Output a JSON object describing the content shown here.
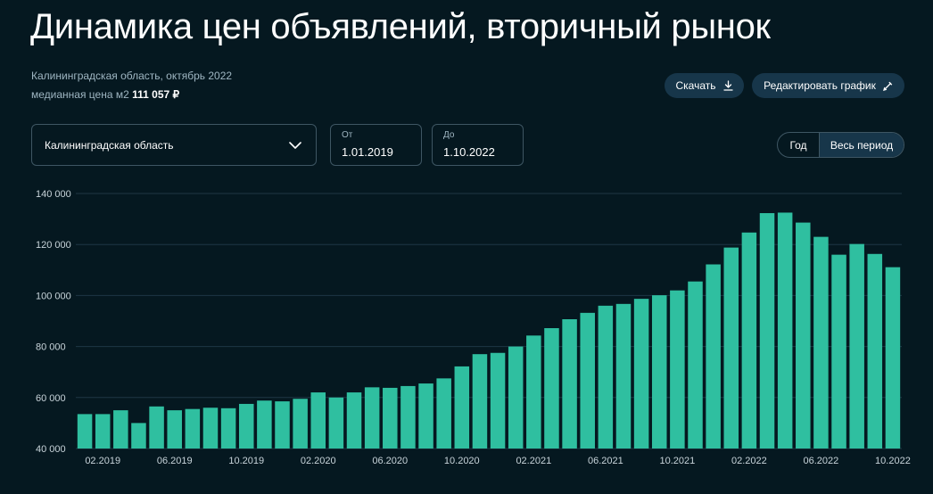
{
  "header": {
    "title": "Динамика цен объявлений, вторичный рынок",
    "region_period": "Калининградская область, октябрь 2022",
    "median_label": "медианная цена м2",
    "median_value": "111 057 ₽"
  },
  "toolbar": {
    "download_label": "Скачать",
    "edit_label": "Редактировать график"
  },
  "filters": {
    "region_selected": "Калининградская область",
    "from_label": "От",
    "from_value": "1.01.2019",
    "to_label": "До",
    "to_value": "1.10.2022",
    "period_year": "Год",
    "period_all": "Весь период",
    "period_active": "Весь период"
  },
  "colors": {
    "background": "#051820",
    "bar": "#2fbfa0",
    "grid": "#1e3644",
    "button": "#17364a"
  },
  "chart_data": {
    "type": "bar",
    "title": "",
    "xlabel": "",
    "ylabel": "",
    "ylim": [
      40000,
      140000
    ],
    "yticks": [
      40000,
      60000,
      80000,
      100000,
      120000,
      140000
    ],
    "ytick_labels": [
      "40 000",
      "60 000",
      "80 000",
      "100 000",
      "120 000",
      "140 000"
    ],
    "grid": true,
    "categories": [
      "01.2019",
      "02.2019",
      "03.2019",
      "04.2019",
      "05.2019",
      "06.2019",
      "07.2019",
      "08.2019",
      "09.2019",
      "10.2019",
      "11.2019",
      "12.2019",
      "01.2020",
      "02.2020",
      "03.2020",
      "04.2020",
      "05.2020",
      "06.2020",
      "07.2020",
      "08.2020",
      "09.2020",
      "10.2020",
      "11.2020",
      "12.2020",
      "01.2021",
      "02.2021",
      "03.2021",
      "04.2021",
      "05.2021",
      "06.2021",
      "07.2021",
      "08.2021",
      "09.2021",
      "10.2021",
      "11.2021",
      "12.2021",
      "01.2022",
      "02.2022",
      "03.2022",
      "04.2022",
      "05.2022",
      "06.2022",
      "07.2022",
      "08.2022",
      "09.2022",
      "10.2022"
    ],
    "xtick_labels": [
      "02.2019",
      "06.2019",
      "10.2019",
      "02.2020",
      "06.2020",
      "10.2020",
      "02.2021",
      "06.2021",
      "10.2021",
      "02.2022",
      "06.2022",
      "10.2022"
    ],
    "values": [
      53500,
      53500,
      55000,
      50000,
      56500,
      55000,
      55500,
      56000,
      55800,
      57500,
      58800,
      58500,
      59500,
      62000,
      60000,
      62000,
      64000,
      63800,
      64500,
      65500,
      67500,
      72200,
      77000,
      77500,
      80000,
      84300,
      87200,
      90700,
      93200,
      96000,
      96700,
      98700,
      100100,
      102000,
      105500,
      112200,
      118800,
      124700,
      132300,
      132500,
      128600,
      123000,
      116000,
      120200,
      116300,
      111100
    ]
  }
}
